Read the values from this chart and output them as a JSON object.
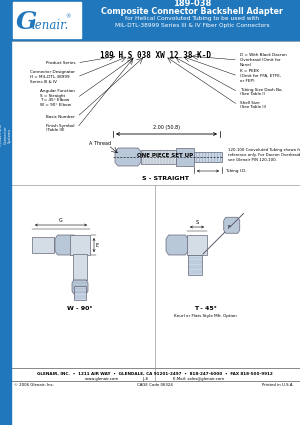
{
  "title_number": "189-038",
  "title_main": "Composite Connector Backshell Adapter",
  "title_sub1": "for Helical Convoluted Tubing to be used with",
  "title_sub2": "MIL-DTL-38999 Series III & IV Fiber Optic Connectors",
  "header_bg": "#2077bc",
  "header_text_color": "#ffffff",
  "body_bg": "#ffffff",
  "border_color": "#aaaaaa",
  "left_stripe_color": "#2077bc",
  "footer_text": "GLENAIR, INC.  •  1211 AIR WAY  •  GLENDALE, CA 91201-2497  •  818-247-6000  •  FAX 818-500-9912",
  "footer_sub": "www.glenair.com                    J-6                    E-Mail: sales@glenair.com",
  "footer_copy": "© 2006 Glenair, Inc.",
  "footer_cage": "CAGE Code 06324",
  "footer_printed": "Printed in U.S.A.",
  "part_number_str": "189 H S 038 XW 12 38 K-D",
  "dim_label": "2.00 (50.8)",
  "one_piece_label": "ONE PIECE SET UP",
  "a_thread_label": "A Thread",
  "tubing_label": "Tubing I.D.",
  "ref_note": "120-100 Convoluted Tubing shown for\nreference only. For Dacron Overbraiding,\nsee Glenair P/N 120-100.",
  "s_label": "S - STRAIGHT",
  "w_label": "W - 90°",
  "t_label": "T - 45°",
  "knurl_note": "Knurl or Flats Style Mfr. Option",
  "connector_fill": "#d4dde6",
  "connector_edge": "#666677",
  "tubing_fill": "#c8d8e8",
  "hex_fill": "#b8c8d8"
}
